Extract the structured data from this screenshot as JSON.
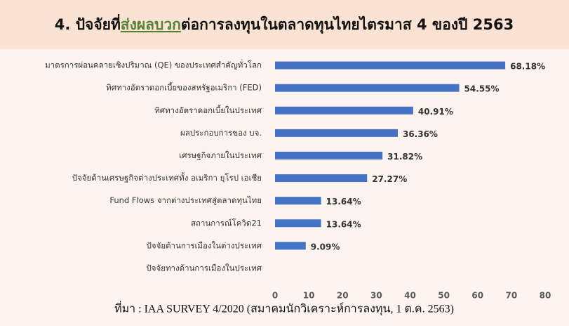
{
  "chart_data": {
    "type": "bar",
    "orientation": "horizontal",
    "title": [
      "4. ปัจจัยที่",
      "ส่งผลบวก",
      "ต่อการลงทุนในตลาดทุนไทยไตรมาส 4 ของปี 2563"
    ],
    "title_highlight_color": "#548235",
    "categories": [
      "มาตรการผ่อนคลายเชิงปริมาณ (QE) ของประเทศสำคัญทั่วโลก",
      "ทิศทางอัตราดอกเบี้ยของสหรัฐอเมริกา (FED)",
      "ทิศทางอัตราดอกเบี้ยในประเทศ",
      "ผลประกอบการของ บจ.",
      "เศรษฐกิจภายในประเทศ",
      "ปัจจัยด้านเศรษฐกิจต่างประเทศทั้ง อเมริกา ยุโรป เอเชีย",
      "Fund Flows จากต่างประเทศสู่ตลาดทุนไทย",
      "สถานการณ์โควิด21",
      "ปัจจัยด้านการเมืองในต่างประเทศ",
      "ปัจจัยทางด้านการเมืองในประเทศ"
    ],
    "values": [
      68.18,
      54.55,
      40.91,
      36.36,
      31.82,
      27.27,
      13.64,
      13.64,
      9.09,
      null
    ],
    "value_labels": [
      "68.18%",
      "54.55%",
      "40.91%",
      "36.36%",
      "31.82%",
      "27.27%",
      "13.64%",
      "13.64%",
      "9.09%",
      null
    ],
    "color": "#4472c4",
    "xlim": [
      0,
      80
    ],
    "xticks": [
      0,
      10,
      20,
      30,
      40,
      50,
      60,
      70,
      80
    ],
    "grid": false,
    "source": "ที่มา : IAA SURVEY 4/2020 (สมาคมนักวิเคราะห์การลงทุน, 1 ต.ค. 2563)"
  }
}
